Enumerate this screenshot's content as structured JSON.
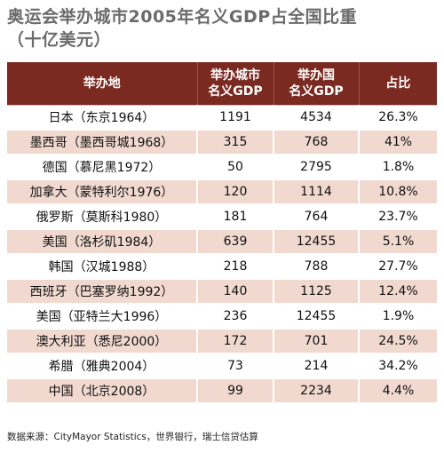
{
  "title": {
    "line1": "奥运会举办城市2005年名义GDP占全国比重",
    "line2": "（十亿美元）"
  },
  "source": "数据来源：CityMayor Statistics，世界银行，瑞士信贷估算",
  "colors": {
    "header_bg": "#7a2a21",
    "row_alt": "#f1d9cf",
    "title": "#6b6b6b"
  },
  "chart_data": {
    "type": "table",
    "title": "奥运会举办城市2005年名义GDP占全国比重（十亿美元）",
    "columns": [
      "举办地",
      "举办城市名义GDP",
      "举办国名义GDP",
      "占比"
    ],
    "header_lines": [
      [
        "举办地"
      ],
      [
        "举办城市",
        "名义GDP"
      ],
      [
        "举办国",
        "名义GDP"
      ],
      [
        "占比"
      ]
    ],
    "rows": [
      [
        "日本（东京1964）",
        "1191",
        "4534",
        "26.3%"
      ],
      [
        "墨西哥（墨西哥城1968）",
        "315",
        "768",
        "41%"
      ],
      [
        "德国（慕尼黑1972）",
        "50",
        "2795",
        "1.8%"
      ],
      [
        "加拿大（蒙特利尔1976）",
        "120",
        "1114",
        "10.8%"
      ],
      [
        "俄罗斯（莫斯科1980）",
        "181",
        "764",
        "23.7%"
      ],
      [
        "美国（洛杉矶1984）",
        "639",
        "12455",
        "5.1%"
      ],
      [
        "韩国（汉城1988）",
        "218",
        "788",
        "27.7%"
      ],
      [
        "西班牙（巴塞罗纳1992）",
        "140",
        "1125",
        "12.4%"
      ],
      [
        "美国（亚特兰大1996）",
        "236",
        "12455",
        "1.9%"
      ],
      [
        "澳大利亚（悉尼2000）",
        "172",
        "701",
        "24.5%"
      ],
      [
        "希腊（雅典2004）",
        "73",
        "214",
        "34.2%"
      ],
      [
        "中国（北京2008）",
        "99",
        "2234",
        "4.4%"
      ]
    ]
  }
}
